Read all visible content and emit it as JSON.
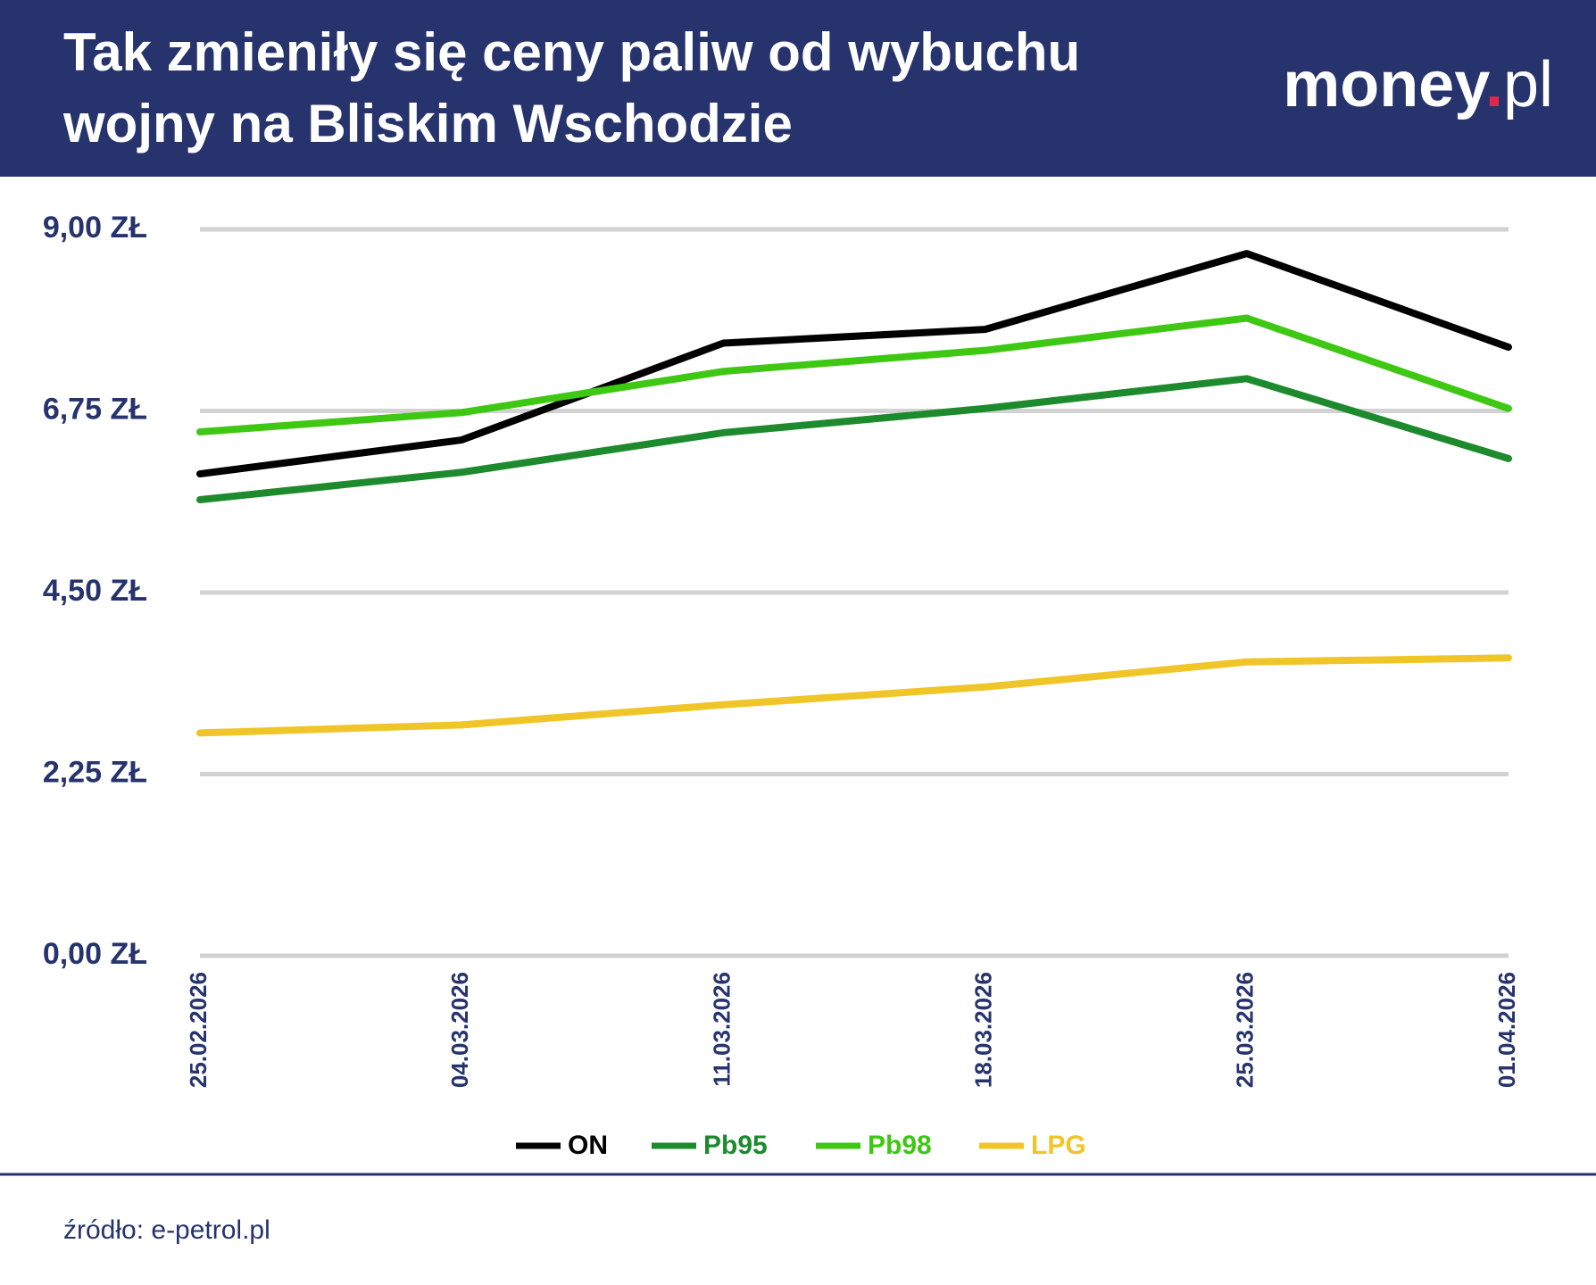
{
  "header": {
    "logo": {
      "name": "money",
      "dot": ".",
      "tld": "pl"
    }
  },
  "chart_data": {
    "type": "line",
    "title": [
      "Tak zmieniły się ceny paliw od wybuchu",
      "wojny na Bliskim Wschodzie"
    ],
    "categories": [
      "25.02.2026",
      "04.03.2026",
      "11.03.2026",
      "18.03.2026",
      "25.03.2026",
      "01.04.2026"
    ],
    "series": [
      {
        "name": "ON",
        "color": "#000000",
        "values": [
          5.97,
          6.39,
          7.59,
          7.76,
          8.7,
          7.54
        ]
      },
      {
        "name": "Pb95",
        "color": "#1e8a2e",
        "values": [
          5.65,
          5.99,
          6.48,
          6.78,
          7.15,
          6.16
        ]
      },
      {
        "name": "Pb98",
        "color": "#3ec814",
        "values": [
          6.49,
          6.73,
          7.24,
          7.5,
          7.9,
          6.78
        ]
      },
      {
        "name": "LPG",
        "color": "#f0c528",
        "values": [
          2.76,
          2.86,
          3.11,
          3.33,
          3.64,
          3.69
        ]
      }
    ],
    "ylim": [
      0,
      9
    ],
    "yticks": [
      {
        "value": 0,
        "label": "0,00 ZŁ"
      },
      {
        "value": 2.25,
        "label": "2,25 ZŁ"
      },
      {
        "value": 4.5,
        "label": "4,50 ZŁ"
      },
      {
        "value": 6.75,
        "label": "6,75 ZŁ"
      },
      {
        "value": 9,
        "label": "9,00 ZŁ"
      }
    ],
    "grid": true,
    "legend": "bottom",
    "source": "źródło: e-petrol.pl"
  }
}
